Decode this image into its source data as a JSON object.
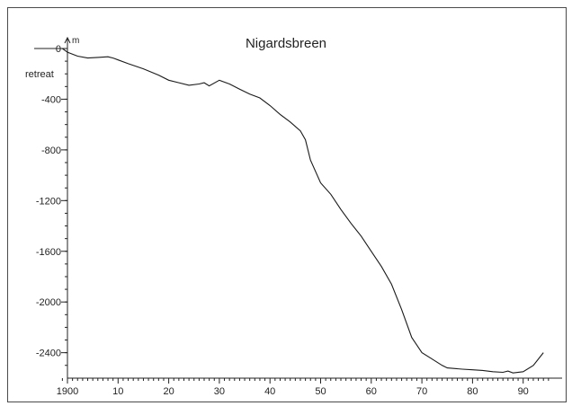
{
  "chart_data": {
    "type": "line",
    "title": "Nigardsbreen",
    "unit": "m",
    "ylabel": "retreat",
    "xlim": [
      1900,
      1995
    ],
    "ylim": [
      -2500,
      50
    ],
    "x_ticks": [
      {
        "value": 1900,
        "label": "1900"
      },
      {
        "value": 1910,
        "label": "10"
      },
      {
        "value": 1920,
        "label": "20"
      },
      {
        "value": 1930,
        "label": "30"
      },
      {
        "value": 1940,
        "label": "40"
      },
      {
        "value": 1950,
        "label": "50"
      },
      {
        "value": 1960,
        "label": "60"
      },
      {
        "value": 1970,
        "label": "70"
      },
      {
        "value": 1980,
        "label": "80"
      },
      {
        "value": 1990,
        "label": "90"
      }
    ],
    "y_ticks": [
      {
        "value": 0,
        "label": "0"
      },
      {
        "value": -400,
        "label": "-400"
      },
      {
        "value": -800,
        "label": "-800"
      },
      {
        "value": -1200,
        "label": "-1200"
      },
      {
        "value": -1600,
        "label": "-1600"
      },
      {
        "value": -2000,
        "label": "-2000"
      },
      {
        "value": -2400,
        "label": "-2400"
      }
    ],
    "grid": false,
    "series": [
      {
        "x": [
          1899,
          1900,
          1902,
          1904,
          1906,
          1908,
          1909,
          1910,
          1912,
          1915,
          1918,
          1920,
          1922,
          1924,
          1926,
          1927,
          1928,
          1930,
          1932,
          1934,
          1936,
          1938,
          1940,
          1942,
          1944,
          1946,
          1947,
          1948,
          1950,
          1952,
          1954,
          1956,
          1958,
          1960,
          1962,
          1964,
          1966,
          1968,
          1970,
          1972,
          1974,
          1975,
          1978,
          1980,
          1982,
          1984,
          1986,
          1987,
          1988,
          1990,
          1992,
          1994
        ],
        "values": [
          0,
          -30,
          -60,
          -75,
          -70,
          -65,
          -75,
          -90,
          -120,
          -160,
          -210,
          -250,
          -270,
          -290,
          -280,
          -270,
          -295,
          -250,
          -280,
          -320,
          -360,
          -390,
          -450,
          -520,
          -580,
          -650,
          -720,
          -880,
          -1060,
          -1150,
          -1270,
          -1380,
          -1480,
          -1600,
          -1720,
          -1860,
          -2060,
          -2280,
          -2400,
          -2450,
          -2500,
          -2520,
          -2530,
          -2535,
          -2540,
          -2550,
          -2555,
          -2545,
          -2560,
          -2550,
          -2500,
          -2400
        ]
      }
    ]
  }
}
